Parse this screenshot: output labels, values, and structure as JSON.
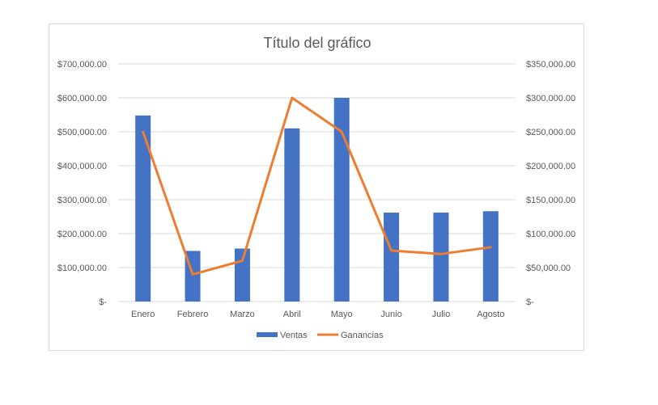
{
  "chart_data": {
    "type": "bar",
    "title": "Título del gráfico",
    "categories": [
      "Enero",
      "Febrero",
      "Marzo",
      "Abril",
      "Mayo",
      "Junio",
      "Julio",
      "Agosto"
    ],
    "series": [
      {
        "name": "Ventas",
        "type": "bar",
        "axis": "left",
        "color": "#4472c4",
        "values": [
          548000,
          149000,
          156000,
          510000,
          600000,
          262000,
          262000,
          266000
        ]
      },
      {
        "name": "Ganancias",
        "type": "line",
        "axis": "right",
        "color": "#ed7d31",
        "values": [
          250000,
          40000,
          60000,
          300000,
          250000,
          75000,
          70000,
          80000
        ]
      }
    ],
    "y_left": {
      "ylim": [
        0,
        700000
      ],
      "ticks": [
        0,
        100000,
        200000,
        300000,
        400000,
        500000,
        600000,
        700000
      ],
      "tick_labels": [
        "$-",
        "$100,000.00",
        "$200,000.00",
        "$300,000.00",
        "$400,000.00",
        "$500,000.00",
        "$600,000.00",
        "$700,000.00"
      ]
    },
    "y_right": {
      "ylim": [
        0,
        350000
      ],
      "ticks": [
        0,
        50000,
        100000,
        150000,
        200000,
        250000,
        300000,
        350000
      ],
      "tick_labels": [
        "$-",
        "$50,000.00",
        "$100,000.00",
        "$150,000.00",
        "$200,000.00",
        "$250,000.00",
        "$300,000.00",
        "$350,000.00"
      ]
    },
    "grid": true,
    "legend": "bottom"
  }
}
